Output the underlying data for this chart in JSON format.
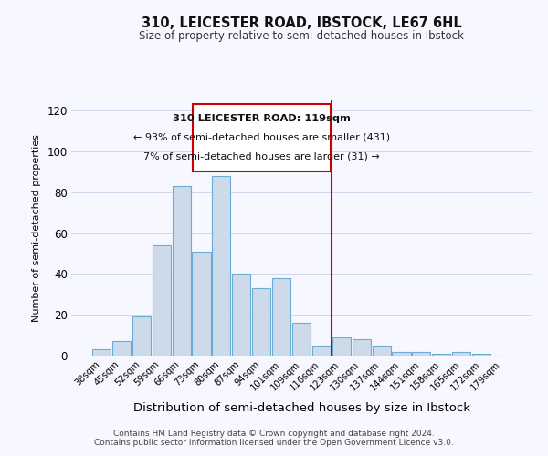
{
  "title": "310, LEICESTER ROAD, IBSTOCK, LE67 6HL",
  "subtitle": "Size of property relative to semi-detached houses in Ibstock",
  "xlabel": "Distribution of semi-detached houses by size in Ibstock",
  "ylabel": "Number of semi-detached properties",
  "footer_line1": "Contains HM Land Registry data © Crown copyright and database right 2024.",
  "footer_line2": "Contains public sector information licensed under the Open Government Licence v3.0.",
  "bin_labels": [
    "38sqm",
    "45sqm",
    "52sqm",
    "59sqm",
    "66sqm",
    "73sqm",
    "80sqm",
    "87sqm",
    "94sqm",
    "101sqm",
    "109sqm",
    "116sqm",
    "123sqm",
    "130sqm",
    "137sqm",
    "144sqm",
    "151sqm",
    "158sqm",
    "165sqm",
    "172sqm",
    "179sqm"
  ],
  "bar_heights": [
    3,
    7,
    19,
    54,
    83,
    51,
    88,
    40,
    33,
    38,
    16,
    5,
    9,
    8,
    5,
    2,
    2,
    1,
    2,
    1,
    0
  ],
  "bar_color": "#ccdaea",
  "bar_edge_color": "#6aaed6",
  "vline_color": "#cc0000",
  "annotation_title": "310 LEICESTER ROAD: 119sqm",
  "annotation_line1": "← 93% of semi-detached houses are smaller (431)",
  "annotation_line2": "7% of semi-detached houses are larger (31) →",
  "annotation_box_edge": "#cc0000",
  "ylim": [
    0,
    125
  ],
  "yticks": [
    0,
    20,
    40,
    60,
    80,
    100,
    120
  ],
  "background_color": "#f7f7ff",
  "grid_color": "#d0d8ec"
}
